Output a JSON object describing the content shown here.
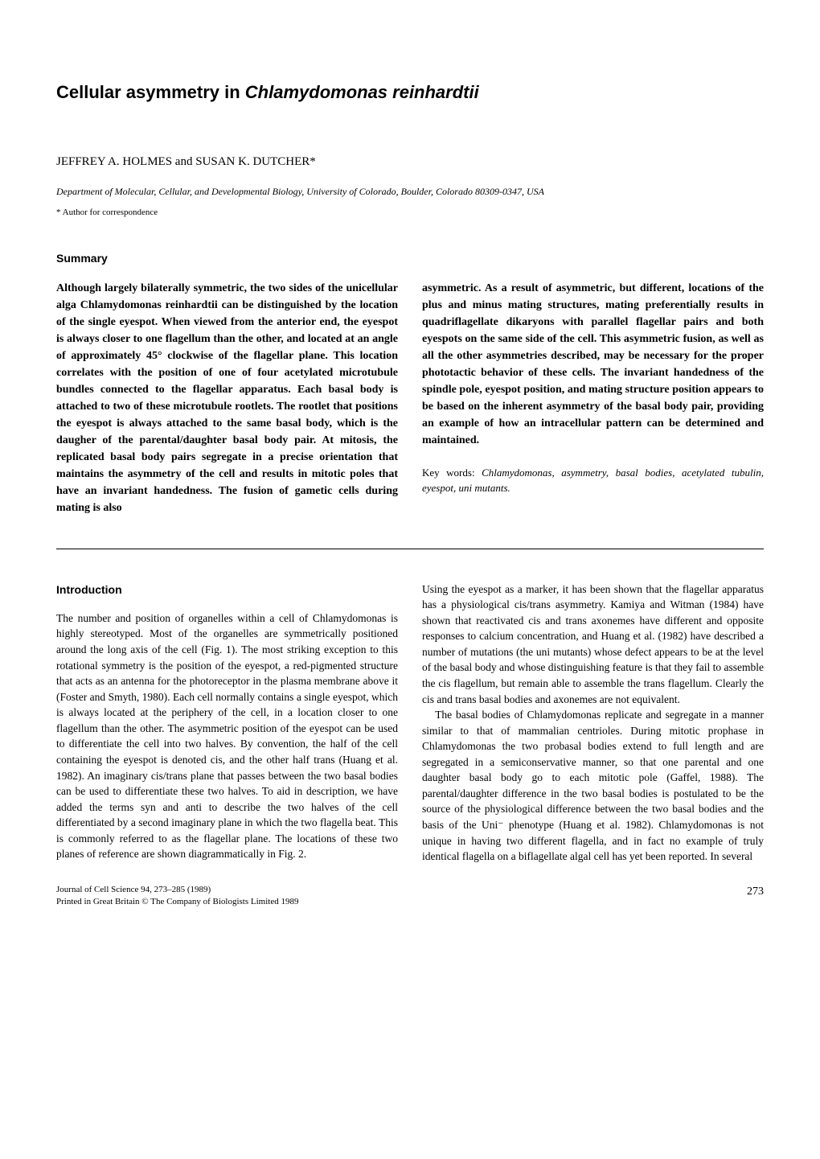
{
  "title_part1": "Cellular asymmetry in ",
  "title_part2": "Chlamydomonas reinhardtii",
  "authors": "JEFFREY A. HOLMES and SUSAN K. DUTCHER*",
  "affiliation": "Department of Molecular, Cellular, and Developmental Biology, University of Colorado, Boulder, Colorado 80309-0347, USA",
  "corresponding": "* Author for correspondence",
  "summary_heading": "Summary",
  "summary_left": "Although largely bilaterally symmetric, the two sides of the unicellular alga Chlamydomonas reinhardtii can be distinguished by the location of the single eyespot. When viewed from the anterior end, the eyespot is always closer to one flagellum than the other, and located at an angle of approximately 45° clockwise of the flagellar plane. This location correlates with the position of one of four acetylated microtubule bundles connected to the flagellar apparatus. Each basal body is attached to two of these microtubule rootlets. The rootlet that positions the eyespot is always attached to the same basal body, which is the daugher of the parental/daughter basal body pair. At mitosis, the replicated basal body pairs segregate in a precise orientation that maintains the asymmetry of the cell and results in mitotic poles that have an invariant handedness. The fusion of gametic cells during mating is also",
  "summary_right": "asymmetric. As a result of asymmetric, but different, locations of the plus and minus mating structures, mating preferentially results in quadriflagellate dikaryons with parallel flagellar pairs and both eyespots on the same side of the cell. This asymmetric fusion, as well as all the other asymmetries described, may be necessary for the proper phototactic behavior of these cells. The invariant handedness of the spindle pole, eyespot position, and mating structure position appears to be based on the inherent asymmetry of the basal body pair, providing an example of how an intracellular pattern can be determined and maintained.",
  "keywords_label": "Key words: ",
  "keywords_text": "Chlamydomonas, asymmetry, basal bodies, acetylated tubulin, eyespot, uni mutants.",
  "intro_heading": "Introduction",
  "intro_left_p1": "The number and position of organelles within a cell of Chlamydomonas is highly stereotyped. Most of the organelles are symmetrically positioned around the long axis of the cell (Fig. 1). The most striking exception to this rotational symmetry is the position of the eyespot, a red-pigmented structure that acts as an antenna for the photoreceptor in the plasma membrane above it (Foster and Smyth, 1980). Each cell normally contains a single eyespot, which is always located at the periphery of the cell, in a location closer to one flagellum than the other. The asymmetric position of the eyespot can be used to differentiate the cell into two halves. By convention, the half of the cell containing the eyespot is denoted cis, and the other half trans (Huang et al. 1982). An imaginary cis/trans plane that passes between the two basal bodies can be used to differentiate these two halves. To aid in description, we have added the terms syn and anti to describe the two halves of the cell differentiated by a second imaginary plane in which the two flagella beat. This is commonly referred to as the flagellar plane. The locations of these two planes of reference are shown diagrammatically in Fig. 2.",
  "intro_right_p1": "Using the eyespot as a marker, it has been shown that the flagellar apparatus has a physiological cis/trans asymmetry. Kamiya and Witman (1984) have shown that reactivated cis and trans axonemes have different and opposite responses to calcium concentration, and Huang et al. (1982) have described a number of mutations (the uni mutants) whose defect appears to be at the level of the basal body and whose distinguishing feature is that they fail to assemble the cis flagellum, but remain able to assemble the trans flagellum. Clearly the cis and trans basal bodies and axonemes are not equivalent.",
  "intro_right_p2": "The basal bodies of Chlamydomonas replicate and segregate in a manner similar to that of mammalian centrioles. During mitotic prophase in Chlamydomonas the two probasal bodies extend to full length and are segregated in a semiconservative manner, so that one parental and one daughter basal body go to each mitotic pole (Gaffel, 1988). The parental/daughter difference in the two basal bodies is postulated to be the source of the physiological difference between the two basal bodies and the basis of the Uni⁻ phenotype (Huang et al. 1982). Chlamydomonas is not unique in having two different flagella, and in fact no example of truly identical flagella on a biflagellate algal cell has yet been reported. In several",
  "journal_line1": "Journal of Cell Science 94, 273–285 (1989)",
  "journal_line2": "Printed in Great Britain © The Company of Biologists Limited 1989",
  "page_number": "273"
}
